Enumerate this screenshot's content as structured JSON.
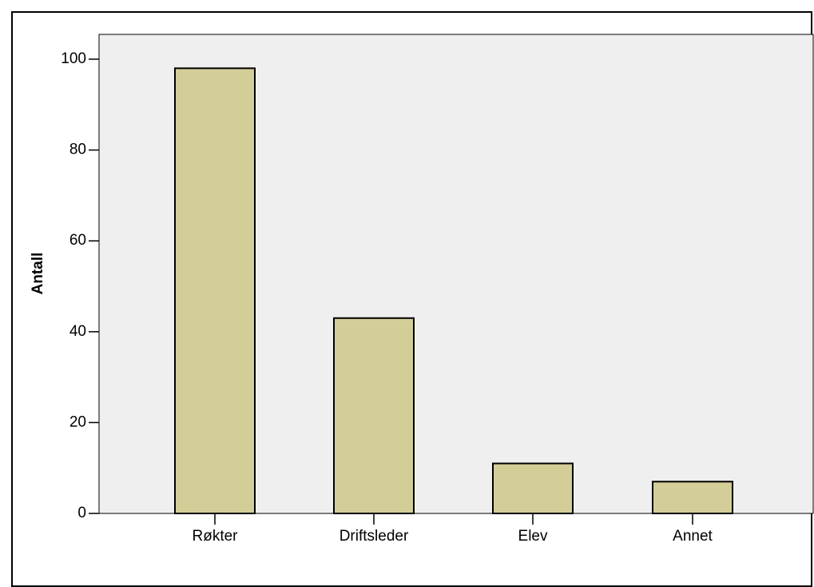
{
  "chart_data": {
    "type": "bar",
    "title": "",
    "xlabel": "",
    "ylabel": "Antall",
    "categories": [
      "Røkter",
      "Driftsleder",
      "Elev",
      "Annet"
    ],
    "values": [
      98,
      43,
      11,
      7
    ],
    "ylim": [
      0,
      105
    ],
    "yticks": [
      0,
      20,
      40,
      60,
      80,
      100
    ],
    "grid": false,
    "legend": "none",
    "colors": {
      "bar_fill": "#d3ce98",
      "bar_stroke": "#000000",
      "plot_background": "#efefef",
      "page_background": "#ffffff"
    }
  }
}
